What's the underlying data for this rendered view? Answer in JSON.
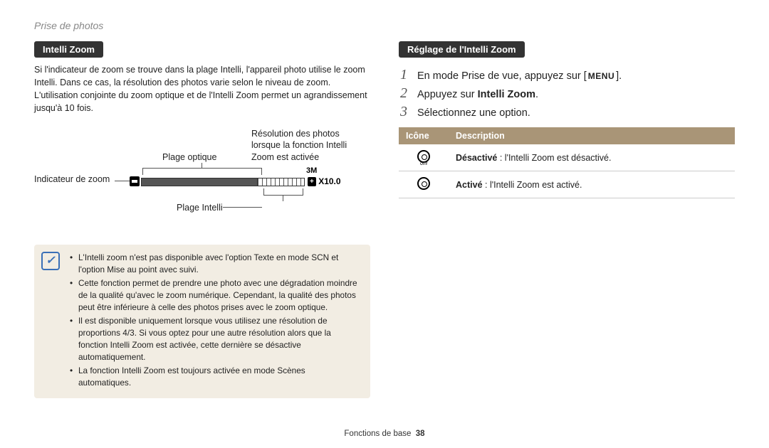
{
  "breadcrumb": "Prise de photos",
  "footer": {
    "section": "Fonctions de base",
    "page": "38"
  },
  "colors": {
    "pill_bg": "#333333",
    "pill_fg": "#ffffff",
    "note_bg": "#f2ede3",
    "note_icon": "#3a6fb7",
    "table_header_bg": "#a99577",
    "table_header_fg": "#ffffff",
    "row_border": "#cccccc",
    "body_fg": "#222222",
    "breadcrumb_fg": "#888888"
  },
  "left": {
    "heading": "Intelli Zoom",
    "intro": "Si l'indicateur de zoom se trouve dans la plage Intelli, l'appareil photo utilise le zoom Intelli. Dans ce cas, la résolution des photos varie selon le niveau de zoom. L'utilisation conjointe du zoom optique et de l'Intelli Zoom permet un agrandissement jusqu'à 10 fois.",
    "diagram": {
      "indicateur": "Indicateur de zoom",
      "plage_optique": "Plage optique",
      "plage_intelli": "Plage Intelli",
      "resolution_label": "Résolution des photos lorsque la fonction Intelli Zoom est activée",
      "res_icon": "3M",
      "zoom_text": "X10.0"
    },
    "notes": [
      "L'Intelli zoom n'est pas disponible avec l'option Texte en mode SCN et l'option Mise au point avec suivi.",
      "Cette fonction permet de prendre une photo avec une dégradation moindre de la qualité qu'avec le zoom numérique. Cependant, la qualité des photos peut être inférieure à celle des photos prises avec le zoom optique.",
      "Il est disponible uniquement lorsque vous utilisez une résolution de proportions 4/3. Si vous optez pour une autre résolution alors que la fonction Intelli Zoom est activée, cette dernière se désactive automatiquement.",
      "La fonction Intelli Zoom est toujours activée en mode Scènes automatiques."
    ]
  },
  "right": {
    "heading": "Réglage de l'Intelli Zoom",
    "steps": {
      "s1_pre": "En mode Prise de vue, appuyez sur [",
      "s1_menu": "MENU",
      "s1_post": "].",
      "s2_pre": "Appuyez sur ",
      "s2_bold": "Intelli Zoom",
      "s2_post": ".",
      "s3": "Sélectionnez une option."
    },
    "table": {
      "h1": "Icône",
      "h2": "Description",
      "r1_bold": "Désactivé",
      "r1_rest": " : l'Intelli Zoom est désactivé.",
      "r2_bold": "Activé",
      "r2_rest": " : l'Intelli Zoom est activé."
    }
  }
}
